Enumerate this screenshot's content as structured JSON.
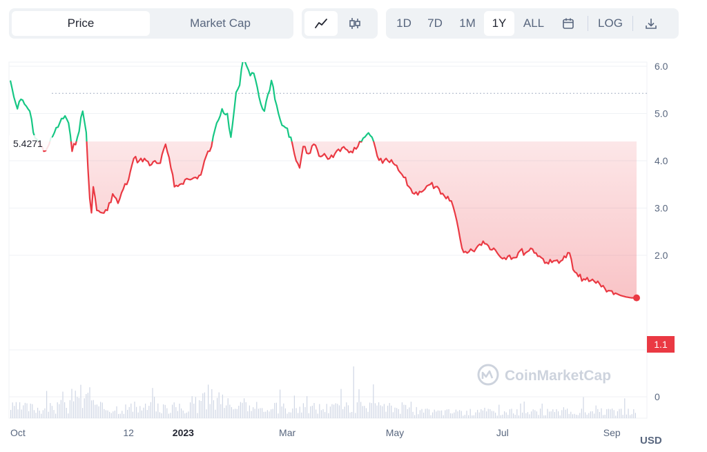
{
  "toolbar": {
    "metric_tabs": [
      {
        "label": "Price",
        "active": true
      },
      {
        "label": "Market Cap",
        "active": false
      }
    ],
    "chart_types": [
      {
        "icon": "line-chart-icon",
        "active": true
      },
      {
        "icon": "candlestick-icon",
        "active": false
      }
    ],
    "ranges": [
      {
        "label": "1D",
        "active": false
      },
      {
        "label": "7D",
        "active": false
      },
      {
        "label": "1M",
        "active": false
      },
      {
        "label": "1Y",
        "active": true
      },
      {
        "label": "ALL",
        "active": false
      }
    ],
    "calendar_icon": "calendar-icon",
    "log_label": "LOG",
    "download_icon": "download-icon"
  },
  "watermark": "CoinMarketCap",
  "currency": "USD",
  "chart_data": {
    "type": "line",
    "start_price": "5.4271",
    "current_price": "1.1",
    "ylim": [
      0,
      7
    ],
    "y_ticks": [
      {
        "label": "6.0",
        "value": 6.0
      },
      {
        "label": "5.0",
        "value": 5.0
      },
      {
        "label": "4.0",
        "value": 4.0
      },
      {
        "label": "3.0",
        "value": 3.0
      },
      {
        "label": "2.0",
        "value": 2.0
      }
    ],
    "volume_tick": {
      "label": "0"
    },
    "x_ticks": [
      {
        "label": "Oct",
        "date": "2022-10-01",
        "bold": false
      },
      {
        "label": "12",
        "date": "2022-12-01",
        "bold": false
      },
      {
        "label": "2023",
        "date": "2023-01-01",
        "bold": true
      },
      {
        "label": "Mar",
        "date": "2023-03-01",
        "bold": false
      },
      {
        "label": "May",
        "date": "2023-05-01",
        "bold": false
      },
      {
        "label": "Jul",
        "date": "2023-07-01",
        "bold": false
      },
      {
        "label": "Sep",
        "date": "2023-09-01",
        "bold": false
      }
    ],
    "colors": {
      "up": "#16c784",
      "down": "#ea3943"
    },
    "series": [
      {
        "values": [
          [
            "2022-09-25",
            5.7
          ],
          [
            "2022-09-27",
            5.35
          ],
          [
            "2022-09-29",
            5.1
          ],
          [
            "2022-10-01",
            5.3
          ],
          [
            "2022-10-03",
            5.2
          ],
          [
            "2022-10-06",
            5.05
          ],
          [
            "2022-10-08",
            4.6
          ],
          [
            "2022-10-11",
            4.4
          ],
          [
            "2022-10-14",
            4.2
          ],
          [
            "2022-10-17",
            4.35
          ],
          [
            "2022-10-20",
            4.6
          ],
          [
            "2022-10-23",
            4.8
          ],
          [
            "2022-10-26",
            4.95
          ],
          [
            "2022-10-28",
            4.8
          ],
          [
            "2022-10-30",
            4.2
          ],
          [
            "2022-11-02",
            4.5
          ],
          [
            "2022-11-05",
            5.05
          ],
          [
            "2022-11-07",
            4.6
          ],
          [
            "2022-11-09",
            3.2
          ],
          [
            "2022-11-10",
            2.9
          ],
          [
            "2022-11-11",
            3.45
          ],
          [
            "2022-11-13",
            2.95
          ],
          [
            "2022-11-16",
            2.9
          ],
          [
            "2022-11-19",
            2.95
          ],
          [
            "2022-11-22",
            3.3
          ],
          [
            "2022-11-25",
            3.1
          ],
          [
            "2022-11-28",
            3.4
          ],
          [
            "2022-12-01",
            3.6
          ],
          [
            "2022-12-04",
            4.05
          ],
          [
            "2022-12-07",
            4.0
          ],
          [
            "2022-12-10",
            4.05
          ],
          [
            "2022-12-13",
            3.9
          ],
          [
            "2022-12-16",
            4.0
          ],
          [
            "2022-12-19",
            3.95
          ],
          [
            "2022-12-22",
            4.35
          ],
          [
            "2022-12-25",
            3.85
          ],
          [
            "2022-12-27",
            3.45
          ],
          [
            "2022-12-30",
            3.5
          ],
          [
            "2023-01-02",
            3.6
          ],
          [
            "2023-01-05",
            3.6
          ],
          [
            "2023-01-08",
            3.65
          ],
          [
            "2023-01-11",
            3.7
          ],
          [
            "2023-01-14",
            4.1
          ],
          [
            "2023-01-17",
            4.3
          ],
          [
            "2023-01-20",
            4.8
          ],
          [
            "2023-01-23",
            5.1
          ],
          [
            "2023-01-26",
            5.0
          ],
          [
            "2023-01-28",
            4.5
          ],
          [
            "2023-01-31",
            5.45
          ],
          [
            "2023-02-02",
            5.6
          ],
          [
            "2023-02-04",
            6.15
          ],
          [
            "2023-02-06",
            6.0
          ],
          [
            "2023-02-08",
            5.8
          ],
          [
            "2023-02-10",
            5.85
          ],
          [
            "2023-02-12",
            5.55
          ],
          [
            "2023-02-14",
            5.2
          ],
          [
            "2023-02-16",
            5.05
          ],
          [
            "2023-02-18",
            5.4
          ],
          [
            "2023-02-20",
            5.7
          ],
          [
            "2023-02-22",
            5.3
          ],
          [
            "2023-02-24",
            5.0
          ],
          [
            "2023-02-26",
            4.75
          ],
          [
            "2023-02-28",
            4.7
          ],
          [
            "2023-03-03",
            4.5
          ],
          [
            "2023-03-05",
            4.15
          ],
          [
            "2023-03-08",
            3.85
          ],
          [
            "2023-03-10",
            4.3
          ],
          [
            "2023-03-13",
            4.15
          ],
          [
            "2023-03-16",
            4.35
          ],
          [
            "2023-03-19",
            4.1
          ],
          [
            "2023-03-22",
            4.15
          ],
          [
            "2023-03-25",
            4.05
          ],
          [
            "2023-03-28",
            4.15
          ],
          [
            "2023-03-31",
            4.2
          ],
          [
            "2023-04-03",
            4.25
          ],
          [
            "2023-04-06",
            4.2
          ],
          [
            "2023-04-09",
            4.25
          ],
          [
            "2023-04-12",
            4.4
          ],
          [
            "2023-04-15",
            4.55
          ],
          [
            "2023-04-18",
            4.5
          ],
          [
            "2023-04-21",
            4.1
          ],
          [
            "2023-04-24",
            3.95
          ],
          [
            "2023-04-27",
            4.0
          ],
          [
            "2023-04-30",
            3.95
          ],
          [
            "2023-05-03",
            3.8
          ],
          [
            "2023-05-06",
            3.65
          ],
          [
            "2023-05-09",
            3.45
          ],
          [
            "2023-05-12",
            3.3
          ],
          [
            "2023-05-15",
            3.35
          ],
          [
            "2023-05-18",
            3.4
          ],
          [
            "2023-05-21",
            3.5
          ],
          [
            "2023-05-24",
            3.45
          ],
          [
            "2023-05-27",
            3.3
          ],
          [
            "2023-05-30",
            3.2
          ],
          [
            "2023-06-02",
            3.15
          ],
          [
            "2023-06-04",
            2.9
          ],
          [
            "2023-06-06",
            2.55
          ],
          [
            "2023-06-08",
            2.15
          ],
          [
            "2023-06-11",
            2.05
          ],
          [
            "2023-06-14",
            2.1
          ],
          [
            "2023-06-17",
            2.2
          ],
          [
            "2023-06-20",
            2.3
          ],
          [
            "2023-06-23",
            2.2
          ],
          [
            "2023-06-26",
            2.15
          ],
          [
            "2023-06-29",
            2.0
          ],
          [
            "2023-07-02",
            1.95
          ],
          [
            "2023-07-05",
            2.0
          ],
          [
            "2023-07-08",
            1.95
          ],
          [
            "2023-07-11",
            2.1
          ],
          [
            "2023-07-14",
            2.05
          ],
          [
            "2023-07-17",
            2.15
          ],
          [
            "2023-07-20",
            2.05
          ],
          [
            "2023-07-23",
            1.95
          ],
          [
            "2023-07-26",
            1.85
          ],
          [
            "2023-07-29",
            1.85
          ],
          [
            "2023-08-01",
            1.9
          ],
          [
            "2023-08-04",
            1.9
          ],
          [
            "2023-08-08",
            2.05
          ],
          [
            "2023-08-10",
            1.7
          ],
          [
            "2023-08-13",
            1.55
          ],
          [
            "2023-08-16",
            1.5
          ],
          [
            "2023-08-19",
            1.45
          ],
          [
            "2023-08-22",
            1.45
          ],
          [
            "2023-08-25",
            1.4
          ],
          [
            "2023-08-28",
            1.3
          ],
          [
            "2023-08-31",
            1.25
          ],
          [
            "2023-09-03",
            1.2
          ],
          [
            "2023-09-06",
            1.15
          ],
          [
            "2023-09-09",
            1.12
          ],
          [
            "2023-09-12",
            1.1
          ],
          [
            "2023-09-15",
            1.1
          ]
        ]
      }
    ]
  }
}
